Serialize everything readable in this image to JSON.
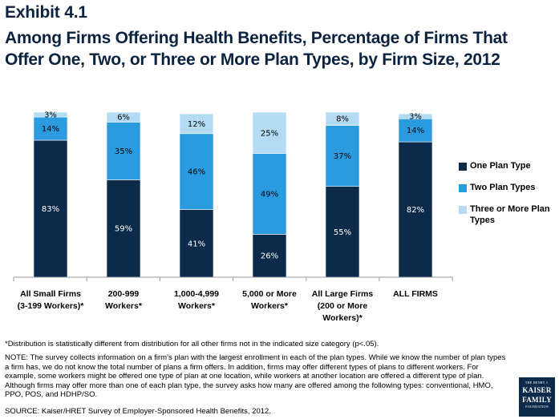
{
  "header": {
    "exhibit": "Exhibit 4.1",
    "title": "Among Firms Offering Health Benefits, Percentage of Firms That Offer One, Two, or Three or More Plan Types, by Firm Size, 2012"
  },
  "colors": {
    "one": "#0c2a4a",
    "two": "#2b9be0",
    "three": "#b3dcf4",
    "axis": "#999999"
  },
  "chart_data": {
    "type": "bar",
    "stacked": true,
    "categories": [
      [
        "All Small Firms",
        "(3-199 Workers)*"
      ],
      [
        "200-999",
        "Workers*"
      ],
      [
        "1,000-4,999",
        "Workers*"
      ],
      [
        "5,000 or More",
        "Workers*"
      ],
      [
        "All Large Firms",
        "(200 or More",
        "Workers)*"
      ],
      [
        "ALL FIRMS"
      ]
    ],
    "series": [
      {
        "name": "One Plan Type",
        "values": [
          83,
          59,
          41,
          26,
          55,
          82
        ],
        "labels": [
          "83%",
          "59%",
          "41%",
          "26%",
          "55%",
          "82%"
        ]
      },
      {
        "name": "Two Plan Types",
        "values": [
          14,
          35,
          46,
          49,
          37,
          14
        ],
        "labels": [
          "14%",
          "35%",
          "46%",
          "49%",
          "37%",
          "14%"
        ]
      },
      {
        "name": "Three or More Plan Types",
        "values": [
          3,
          6,
          12,
          25,
          8,
          3
        ],
        "labels": [
          "3%",
          "6%",
          "12%",
          "25%",
          "8%",
          "3%"
        ]
      }
    ],
    "ylim": [
      0,
      100
    ],
    "legend_position": "right"
  },
  "footnote": "*Distribution is statistically different from distribution for all other firms not in the indicated size category (p<.05).",
  "note": "NOTE:  The survey collects information on a firm’s plan with the largest enrollment in each of the plan types. While we know the number of plan types a firm has, we do not know the total number of plans a firm offers. In addition, firms may offer different types of plans to different workers. For example, some workers might be offered one type of plan at one location, while workers at another location are offered a different type of plan.  Although firms may offer more than one of each plan type, the survey asks how many are offered among the following types: conventional, HMO, PPO, POS, and HDHP/SO.",
  "source": "SOURCE: Kaiser/HRET Survey of Employer-Sponsored Health Benefits, 2012.",
  "logo": {
    "line1": "THE HENRY J.",
    "line2": "KAISER",
    "line3": "FAMILY",
    "line4": "FOUNDATION"
  }
}
